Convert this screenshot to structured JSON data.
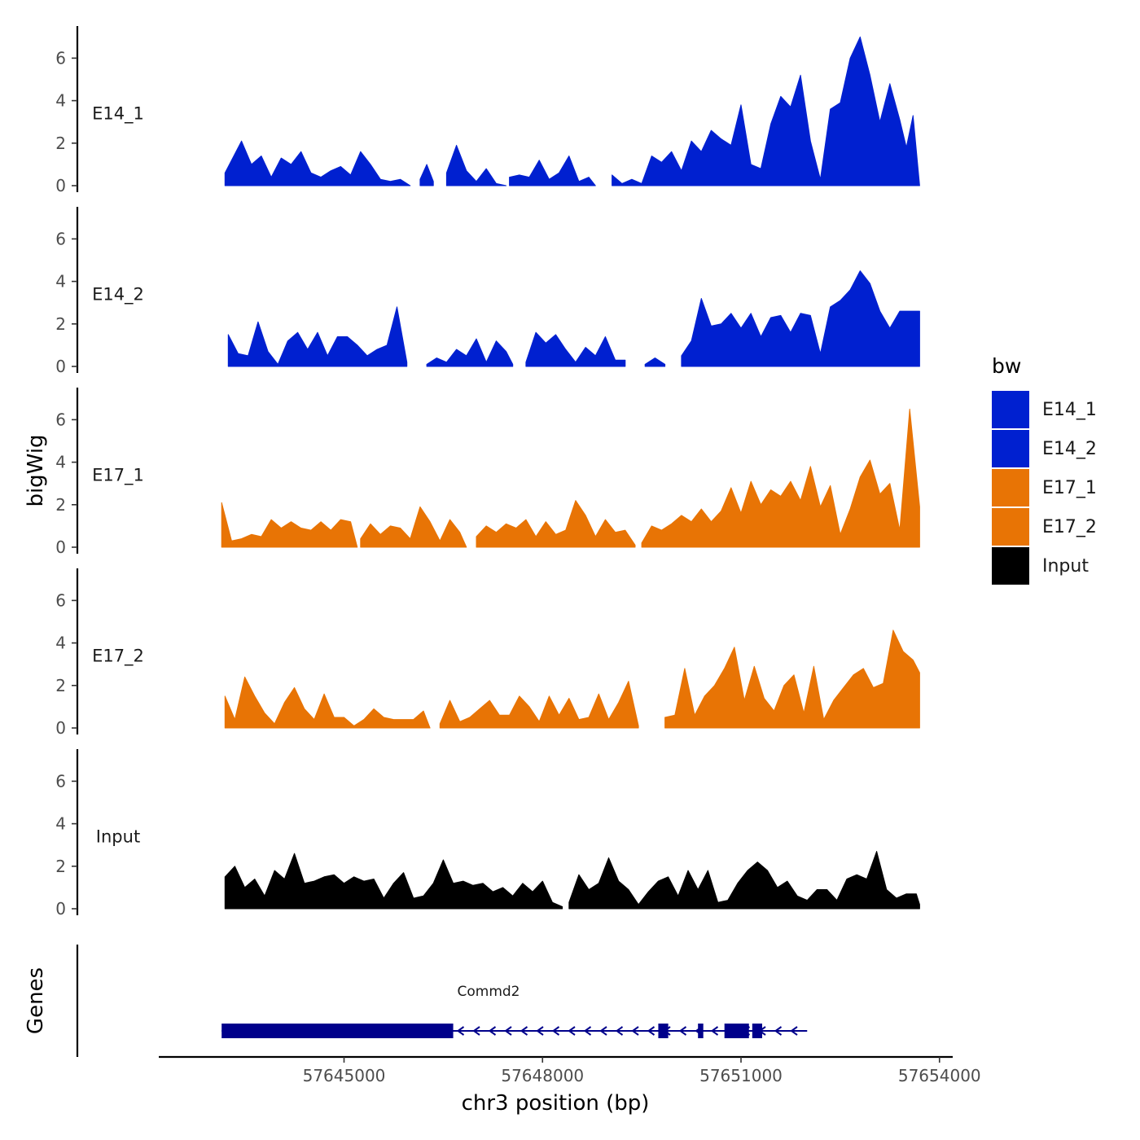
{
  "chart_data": {
    "type": "area",
    "ylabel": "bigWig",
    "xlabel": "chr3 position (bp)",
    "ylim": [
      0,
      7.5
    ],
    "yticks": [
      0,
      2,
      4,
      6
    ],
    "xlim": [
      57642200,
      57654200
    ],
    "xticks": [
      57645000,
      57648000,
      57651000,
      57654000
    ],
    "xtick_labels": [
      "57645000",
      "57648000",
      "57651000",
      "57654000"
    ],
    "genes_label": "Genes",
    "legend": {
      "title": "bw",
      "position": "right",
      "entries": [
        {
          "label": "E14_1",
          "color": "#0020D0"
        },
        {
          "label": "E14_2",
          "color": "#0020D0"
        },
        {
          "label": "E17_1",
          "color": "#E87405"
        },
        {
          "label": "E17_2",
          "color": "#E87405"
        },
        {
          "label": "Input",
          "color": "#000000"
        }
      ]
    },
    "series": [
      {
        "name": "E14_1",
        "color": "#0020D0",
        "segments": [
          {
            "x": [
              57643200,
              57643300,
              57643450,
              57643600,
              57643750,
              57643900,
              57644050,
              57644200,
              57644350,
              57644500,
              57644650,
              57644800,
              57644950,
              57645100,
              57645250,
              57645400,
              57645550,
              57645700,
              57645850,
              57646000
            ],
            "y": [
              0.6,
              1.2,
              2.1,
              1.0,
              1.4,
              0.4,
              1.3,
              1.0,
              1.6,
              0.6,
              0.4,
              0.7,
              0.9,
              0.5,
              1.6,
              1.0,
              0.3,
              0.2,
              0.3,
              0.0
            ]
          },
          {
            "x": [
              57646150,
              57646250,
              57646350
            ],
            "y": [
              0.3,
              1.0,
              0.2
            ]
          },
          {
            "x": [
              57646550,
              57646700,
              57646850,
              57647000,
              57647150,
              57647300,
              57647450
            ],
            "y": [
              0.6,
              1.9,
              0.7,
              0.2,
              0.8,
              0.1,
              0.0
            ]
          },
          {
            "x": [
              57647500,
              57647650,
              57647800,
              57647950,
              57648100,
              57648250,
              57648400,
              57648550,
              57648700,
              57648800
            ],
            "y": [
              0.4,
              0.5,
              0.4,
              1.2,
              0.3,
              0.6,
              1.4,
              0.2,
              0.4,
              0.0
            ]
          },
          {
            "x": [
              57649050,
              57649200,
              57649350,
              57649500,
              57649650,
              57649800,
              57649950,
              57650100,
              57650250,
              57650400,
              57650550,
              57650700,
              57650850,
              57651000,
              57651150,
              57651300,
              57651450,
              57651600,
              57651750,
              57651900,
              57652050,
              57652200,
              57652350,
              57652500,
              57652650,
              57652800,
              57652950,
              57653100,
              57653250,
              57653400,
              57653500,
              57653600,
              57653700
            ],
            "y": [
              0.5,
              0.1,
              0.3,
              0.1,
              1.4,
              1.1,
              1.6,
              0.7,
              2.1,
              1.6,
              2.6,
              2.2,
              1.9,
              3.8,
              1.0,
              0.8,
              2.9,
              4.2,
              3.7,
              5.2,
              2.1,
              0.3,
              3.6,
              3.9,
              6.0,
              7.0,
              5.2,
              3.0,
              4.8,
              3.1,
              1.8,
              3.3,
              0.0
            ]
          }
        ]
      },
      {
        "name": "E14_2",
        "color": "#0020D0",
        "segments": [
          {
            "x": [
              57643250,
              57643400,
              57643550,
              57643700,
              57643850,
              57644000,
              57644150,
              57644300,
              57644450,
              57644600,
              57644750,
              57644900,
              57645050,
              57645200,
              57645350,
              57645500,
              57645650,
              57645800,
              57645950
            ],
            "y": [
              1.5,
              0.6,
              0.5,
              2.1,
              0.7,
              0.1,
              1.2,
              1.6,
              0.8,
              1.6,
              0.5,
              1.4,
              1.4,
              1.0,
              0.5,
              0.8,
              1.0,
              2.8,
              0.2
            ]
          },
          {
            "x": [
              57646250,
              57646400,
              57646550,
              57646700,
              57646850,
              57647000,
              57647150,
              57647300,
              57647450,
              57647550
            ],
            "y": [
              0.1,
              0.4,
              0.2,
              0.8,
              0.5,
              1.3,
              0.2,
              1.2,
              0.7,
              0.1
            ]
          },
          {
            "x": [
              57647750,
              57647900,
              57648050,
              57648200,
              57648350,
              57648500,
              57648650,
              57648800,
              57648950,
              57649100,
              57649250
            ],
            "y": [
              0.2,
              1.6,
              1.1,
              1.5,
              0.8,
              0.2,
              0.9,
              0.5,
              1.4,
              0.3,
              0.3
            ]
          },
          {
            "x": [
              57649550,
              57649700,
              57649850
            ],
            "y": [
              0.1,
              0.4,
              0.1
            ]
          },
          {
            "x": [
              57650100,
              57650250,
              57650400,
              57650550,
              57650700,
              57650850,
              57651000,
              57651150,
              57651300,
              57651450,
              57651600,
              57651750,
              57651900,
              57652050,
              57652200,
              57652350,
              57652500,
              57652650,
              57652800,
              57652950,
              57653100,
              57653250,
              57653400,
              57653550,
              57653700
            ],
            "y": [
              0.5,
              1.2,
              3.2,
              1.9,
              2.0,
              2.5,
              1.8,
              2.5,
              1.4,
              2.3,
              2.4,
              1.6,
              2.5,
              2.4,
              0.6,
              2.8,
              3.1,
              3.6,
              4.5,
              3.9,
              2.6,
              1.8,
              2.6,
              2.6,
              2.6
            ]
          }
        ]
      },
      {
        "name": "E17_1",
        "color": "#E87405",
        "segments": [
          {
            "x": [
              57643150,
              57643300,
              57643450,
              57643600,
              57643750,
              57643900,
              57644050,
              57644200,
              57644350,
              57644500,
              57644650,
              57644800,
              57644950,
              57645100,
              57645200
            ],
            "y": [
              2.1,
              0.3,
              0.4,
              0.6,
              0.5,
              1.3,
              0.9,
              1.2,
              0.9,
              0.8,
              1.2,
              0.8,
              1.3,
              1.2,
              0.0
            ]
          },
          {
            "x": [
              57645250,
              57645400,
              57645550,
              57645700,
              57645850,
              57646000,
              57646150,
              57646300,
              57646450,
              57646600,
              57646750,
              57646850
            ],
            "y": [
              0.4,
              1.1,
              0.6,
              1.0,
              0.9,
              0.4,
              1.9,
              1.2,
              0.3,
              1.3,
              0.7,
              0.0
            ]
          },
          {
            "x": [
              57647000,
              57647150,
              57647300,
              57647450,
              57647600,
              57647750,
              57647900,
              57648050,
              57648200,
              57648350,
              57648500,
              57648650,
              57648800,
              57648950,
              57649100,
              57649250,
              57649400
            ],
            "y": [
              0.5,
              1.0,
              0.7,
              1.1,
              0.9,
              1.3,
              0.5,
              1.2,
              0.6,
              0.8,
              2.2,
              1.5,
              0.5,
              1.3,
              0.7,
              0.8,
              0.1
            ]
          },
          {
            "x": [
              57649500,
              57649650,
              57649800,
              57649950,
              57650100,
              57650250,
              57650400,
              57650550,
              57650700,
              57650850,
              57651000,
              57651150,
              57651300,
              57651450,
              57651600,
              57651750,
              57651900,
              57652050,
              57652200,
              57652350,
              57652500,
              57652650,
              57652800,
              57652950,
              57653100,
              57653250,
              57653400,
              57653550,
              57653700
            ],
            "y": [
              0.2,
              1.0,
              0.8,
              1.1,
              1.5,
              1.2,
              1.8,
              1.2,
              1.7,
              2.8,
              1.6,
              3.1,
              2.0,
              2.7,
              2.4,
              3.1,
              2.2,
              3.8,
              1.9,
              2.9,
              0.6,
              1.8,
              3.3,
              4.1,
              2.5,
              3.0,
              0.8,
              6.5,
              1.9
            ]
          }
        ]
      },
      {
        "name": "E17_2",
        "color": "#E87405",
        "segments": [
          {
            "x": [
              57643200,
              57643350,
              57643500,
              57643650,
              57643800,
              57643950,
              57644100,
              57644250,
              57644400,
              57644550,
              57644700,
              57644850,
              57645000,
              57645150,
              57645300,
              57645450,
              57645600,
              57645750,
              57645900,
              57646050,
              57646200,
              57646300
            ],
            "y": [
              1.5,
              0.4,
              2.4,
              1.5,
              0.7,
              0.2,
              1.2,
              1.9,
              0.9,
              0.4,
              1.6,
              0.5,
              0.5,
              0.1,
              0.4,
              0.9,
              0.5,
              0.4,
              0.4,
              0.4,
              0.8,
              0.0
            ]
          },
          {
            "x": [
              57646450,
              57646600,
              57646750,
              57646900,
              57647050,
              57647200,
              57647350,
              57647500,
              57647650,
              57647800,
              57647950,
              57648100,
              57648250,
              57648400,
              57648550,
              57648700,
              57648850,
              57649000,
              57649150,
              57649300,
              57649450
            ],
            "y": [
              0.2,
              1.3,
              0.3,
              0.5,
              0.9,
              1.3,
              0.6,
              0.6,
              1.5,
              1.0,
              0.3,
              1.5,
              0.6,
              1.4,
              0.4,
              0.5,
              1.6,
              0.4,
              1.2,
              2.2,
              0.1
            ]
          },
          {
            "x": [
              57649850,
              57650000,
              57650150,
              57650300,
              57650450,
              57650600,
              57650750,
              57650900,
              57651050,
              57651200,
              57651350,
              57651500,
              57651650,
              57651800,
              57651950,
              57652100,
              57652250,
              57652400,
              57652550,
              57652700,
              57652850,
              57653000,
              57653150,
              57653300,
              57653450,
              57653600,
              57653700
            ],
            "y": [
              0.5,
              0.6,
              2.8,
              0.6,
              1.5,
              2.0,
              2.8,
              3.8,
              1.3,
              2.9,
              1.4,
              0.8,
              2.0,
              2.5,
              0.7,
              2.9,
              0.4,
              1.3,
              1.9,
              2.5,
              2.8,
              1.9,
              2.1,
              4.6,
              3.6,
              3.2,
              2.6
            ]
          }
        ]
      },
      {
        "name": "Input",
        "color": "#000000",
        "segments": [
          {
            "x": [
              57643200,
              57643350,
              57643500,
              57643650,
              57643800,
              57643950,
              57644100,
              57644250,
              57644400,
              57644550,
              57644700,
              57644850,
              57645000,
              57645150,
              57645300,
              57645450,
              57645600,
              57645750,
              57645900,
              57646050,
              57646200,
              57646350,
              57646500,
              57646650,
              57646800,
              57646950,
              57647100,
              57647250,
              57647400,
              57647550,
              57647700,
              57647850,
              57648000,
              57648150,
              57648300
            ],
            "y": [
              1.5,
              2.0,
              1.0,
              1.4,
              0.6,
              1.8,
              1.4,
              2.6,
              1.2,
              1.3,
              1.5,
              1.6,
              1.2,
              1.5,
              1.3,
              1.4,
              0.5,
              1.2,
              1.7,
              0.5,
              0.6,
              1.2,
              2.3,
              1.2,
              1.3,
              1.1,
              1.2,
              0.8,
              1.0,
              0.6,
              1.2,
              0.8,
              1.3,
              0.3,
              0.1
            ]
          },
          {
            "x": [
              57648400,
              57648550,
              57648700,
              57648850,
              57649000,
              57649150,
              57649300,
              57649450,
              57649600,
              57649750,
              57649900,
              57650050,
              57650200,
              57650350,
              57650500,
              57650650,
              57650800,
              57650950,
              57651100,
              57651250,
              57651400,
              57651550,
              57651700,
              57651850,
              57652000,
              57652150,
              57652300,
              57652450,
              57652600,
              57652750,
              57652900,
              57653050,
              57653200,
              57653350,
              57653500,
              57653650,
              57653700
            ],
            "y": [
              0.3,
              1.6,
              0.9,
              1.2,
              2.4,
              1.3,
              0.9,
              0.2,
              0.8,
              1.3,
              1.5,
              0.6,
              1.8,
              0.9,
              1.8,
              0.3,
              0.4,
              1.2,
              1.8,
              2.2,
              1.8,
              1.0,
              1.3,
              0.6,
              0.4,
              0.9,
              0.9,
              0.4,
              1.4,
              1.6,
              1.4,
              2.7,
              0.9,
              0.5,
              0.7,
              0.7,
              0.2
            ]
          }
        ]
      }
    ],
    "gene": {
      "name": "Commd2",
      "strand": "-",
      "start": 57643150,
      "end": 57652000,
      "exons": [
        {
          "start": 57643150,
          "end": 57646650
        },
        {
          "start": 57649750,
          "end": 57649900
        },
        {
          "start": 57650350,
          "end": 57650430
        },
        {
          "start": 57650750,
          "end": 57651120
        },
        {
          "start": 57651170,
          "end": 57651320
        }
      ]
    }
  }
}
